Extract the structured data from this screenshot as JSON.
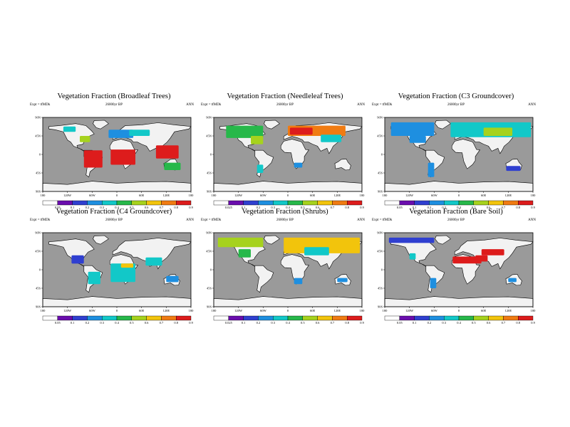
{
  "colors": {
    "ocean": "#9a9a9a",
    "land": "#f2f2f2",
    "coast": "#000000",
    "scale": [
      "#ffffff",
      "#6a0dad",
      "#2f3fd0",
      "#1e8fe0",
      "#12c8c8",
      "#27b84a",
      "#a6d21d",
      "#f2c40c",
      "#f07b12",
      "#dd1c1c"
    ]
  },
  "map_axes": {
    "lon_labels": [
      "180",
      "120W",
      "60W",
      "0",
      "60E",
      "120E",
      "180"
    ],
    "lat_labels": [
      "90N",
      "45N",
      "0",
      "45S",
      "90S"
    ]
  },
  "chart_data": [
    {
      "type": "heatmap",
      "title": "Vegetation Fraction (Broadleaf Trees)",
      "subtitle_left": "Expt = tfMDk",
      "subtitle_center": "26000yr BP",
      "subtitle_right": "ANN",
      "colorbar_ticks": [
        "0.05",
        "0.1",
        "0.2",
        "0.3",
        "0.4",
        "0.5",
        "0.6",
        "0.7",
        "0.8",
        "0.9"
      ],
      "regions": [
        {
          "lon": [
            -80,
            -35
          ],
          "lat": [
            -32,
            10
          ],
          "value": 0.85
        },
        {
          "lon": [
            -15,
            45
          ],
          "lat": [
            -25,
            12
          ],
          "value": 0.8
        },
        {
          "lon": [
            95,
            150
          ],
          "lat": [
            -10,
            22
          ],
          "value": 0.85
        },
        {
          "lon": [
            115,
            155
          ],
          "lat": [
            -38,
            -20
          ],
          "value": 0.45
        },
        {
          "lon": [
            -130,
            -100
          ],
          "lat": [
            55,
            68
          ],
          "value": 0.3
        },
        {
          "lon": [
            -20,
            40
          ],
          "lat": [
            40,
            60
          ],
          "value": 0.2
        },
        {
          "lon": [
            -90,
            -65
          ],
          "lat": [
            30,
            45
          ],
          "value": 0.5
        },
        {
          "lon": [
            30,
            80
          ],
          "lat": [
            45,
            60
          ],
          "value": 0.35
        }
      ]
    },
    {
      "type": "heatmap",
      "title": "Vegetation Fraction (Needleleaf Trees)",
      "subtitle_left": "Expt = tfMDk",
      "subtitle_center": "26000yr BP",
      "subtitle_right": "ANN",
      "colorbar_ticks": [
        "0.025",
        "0.1",
        "0.2",
        "0.3",
        "0.4",
        "0.5",
        "0.6",
        "0.7",
        "0.8",
        "0.9"
      ],
      "regions": [
        {
          "lon": [
            -150,
            -60
          ],
          "lat": [
            40,
            70
          ],
          "value": 0.45
        },
        {
          "lon": [
            -90,
            -60
          ],
          "lat": [
            25,
            45
          ],
          "value": 0.55
        },
        {
          "lon": [
            0,
            140
          ],
          "lat": [
            45,
            70
          ],
          "value": 0.75
        },
        {
          "lon": [
            5,
            60
          ],
          "lat": [
            48,
            65
          ],
          "value": 0.9
        },
        {
          "lon": [
            80,
            130
          ],
          "lat": [
            30,
            48
          ],
          "value": 0.35
        },
        {
          "lon": [
            -75,
            -60
          ],
          "lat": [
            -45,
            -25
          ],
          "value": 0.3
        },
        {
          "lon": [
            15,
            35
          ],
          "lat": [
            -32,
            -20
          ],
          "value": 0.2
        }
      ]
    },
    {
      "type": "heatmap",
      "title": "Vegetation Fraction (C3 Groundcover)",
      "subtitle_left": "Expt = tfMDk",
      "subtitle_center": "26000yr BP",
      "subtitle_right": "ANN",
      "colorbar_ticks": [
        "0.05",
        "0.1",
        "0.2",
        "0.3",
        "0.4",
        "0.5",
        "0.6",
        "0.7",
        "0.8",
        "0.9"
      ],
      "regions": [
        {
          "lon": [
            -165,
            -60
          ],
          "lat": [
            45,
            78
          ],
          "value": 0.25
        },
        {
          "lon": [
            -20,
            175
          ],
          "lat": [
            42,
            78
          ],
          "value": 0.3
        },
        {
          "lon": [
            60,
            130
          ],
          "lat": [
            45,
            65
          ],
          "value": 0.55
        },
        {
          "lon": [
            -75,
            -60
          ],
          "lat": [
            -55,
            -20
          ],
          "value": 0.2
        },
        {
          "lon": [
            115,
            150
          ],
          "lat": [
            -40,
            -28
          ],
          "value": 0.15
        },
        {
          "lon": [
            -120,
            -80
          ],
          "lat": [
            28,
            45
          ],
          "value": 0.2
        }
      ]
    },
    {
      "type": "heatmap",
      "title": "Vegetation Fraction (C4 Groundcover)",
      "subtitle_left": "Expt = tfMDk",
      "subtitle_center": "26000yr BP",
      "subtitle_right": "ANN",
      "colorbar_ticks": [
        "0.05",
        "0.1",
        "0.2",
        "0.3",
        "0.4",
        "0.5",
        "0.6",
        "0.7",
        "0.8",
        "0.9"
      ],
      "regions": [
        {
          "lon": [
            -110,
            -80
          ],
          "lat": [
            15,
            35
          ],
          "value": 0.15
        },
        {
          "lon": [
            -70,
            -40
          ],
          "lat": [
            -35,
            -5
          ],
          "value": 0.3
        },
        {
          "lon": [
            -15,
            45
          ],
          "lat": [
            -30,
            15
          ],
          "value": 0.35
        },
        {
          "lon": [
            10,
            40
          ],
          "lat": [
            5,
            15
          ],
          "value": 0.6
        },
        {
          "lon": [
            70,
            110
          ],
          "lat": [
            10,
            30
          ],
          "value": 0.3
        },
        {
          "lon": [
            120,
            150
          ],
          "lat": [
            -30,
            -15
          ],
          "value": 0.2
        }
      ]
    },
    {
      "type": "heatmap",
      "title": "Vegetation Fraction (Shrubs)",
      "subtitle_left": "Expt = tfMDk",
      "subtitle_center": "26000yr BP",
      "subtitle_right": "ANN",
      "colorbar_ticks": [
        "0.025",
        "0.1",
        "0.2",
        "0.3",
        "0.4",
        "0.5",
        "0.6",
        "0.7",
        "0.8",
        "0.9"
      ],
      "regions": [
        {
          "lon": [
            -170,
            -60
          ],
          "lat": [
            55,
            78
          ],
          "value": 0.55
        },
        {
          "lon": [
            -120,
            -90
          ],
          "lat": [
            30,
            50
          ],
          "value": 0.45
        },
        {
          "lon": [
            -10,
            175
          ],
          "lat": [
            40,
            78
          ],
          "value": 0.6
        },
        {
          "lon": [
            40,
            100
          ],
          "lat": [
            35,
            55
          ],
          "value": 0.35
        },
        {
          "lon": [
            15,
            35
          ],
          "lat": [
            -35,
            -20
          ],
          "value": 0.2
        },
        {
          "lon": [
            120,
            145
          ],
          "lat": [
            -30,
            -20
          ],
          "value": 0.2
        }
      ]
    },
    {
      "type": "heatmap",
      "title": "Vegetation Fraction (Bare Soil)",
      "subtitle_left": "Expt = tfMDk",
      "subtitle_center": "26000yr BP",
      "subtitle_right": "ANN",
      "colorbar_ticks": [
        "0.05",
        "0.1",
        "0.2",
        "0.3",
        "0.4",
        "0.5",
        "0.6",
        "0.7",
        "0.8",
        "0.9"
      ],
      "regions": [
        {
          "lon": [
            -15,
            55
          ],
          "lat": [
            15,
            32
          ],
          "value": 0.95
        },
        {
          "lon": [
            40,
            70
          ],
          "lat": [
            20,
            35
          ],
          "value": 0.9
        },
        {
          "lon": [
            55,
            110
          ],
          "lat": [
            35,
            50
          ],
          "value": 0.8
        },
        {
          "lon": [
            -120,
            -105
          ],
          "lat": [
            25,
            40
          ],
          "value": 0.3
        },
        {
          "lon": [
            120,
            140
          ],
          "lat": [
            -30,
            -20
          ],
          "value": 0.25
        },
        {
          "lon": [
            -70,
            -55
          ],
          "lat": [
            -45,
            -20
          ],
          "value": 0.2
        },
        {
          "lon": [
            -170,
            -60
          ],
          "lat": [
            65,
            78
          ],
          "value": 0.15
        }
      ]
    }
  ]
}
